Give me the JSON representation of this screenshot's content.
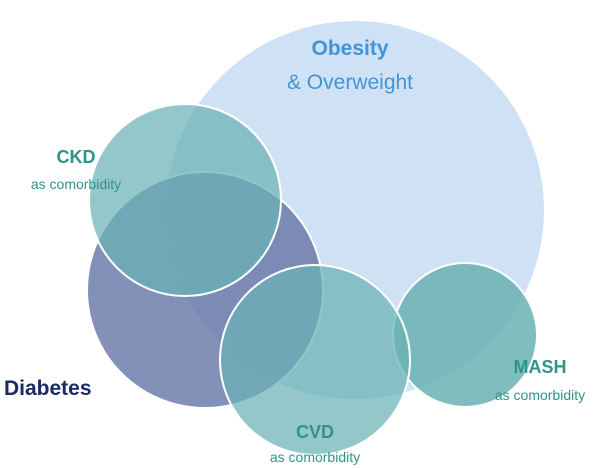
{
  "sets": {
    "obesity": {
      "title": "Obesity",
      "subtitle": "& Overweight",
      "color": "#cfe2f5",
      "label_color": "#3f95d6"
    },
    "ckd": {
      "title": "CKD",
      "subtitle": "as comorbidity",
      "color": "#6ab2b4",
      "label_color": "#2f9488"
    },
    "diabetes": {
      "title": "Diabetes",
      "color": "#6878a8",
      "label_color": "#1a2a66"
    },
    "cvd": {
      "title": "CVD",
      "subtitle": "as comorbidity",
      "color": "#6ab2b4",
      "label_color": "#2f9488"
    },
    "mash": {
      "title": "MASH",
      "subtitle": "as comorbidity",
      "color": "#6ab2b4",
      "label_color": "#2f9488"
    }
  }
}
